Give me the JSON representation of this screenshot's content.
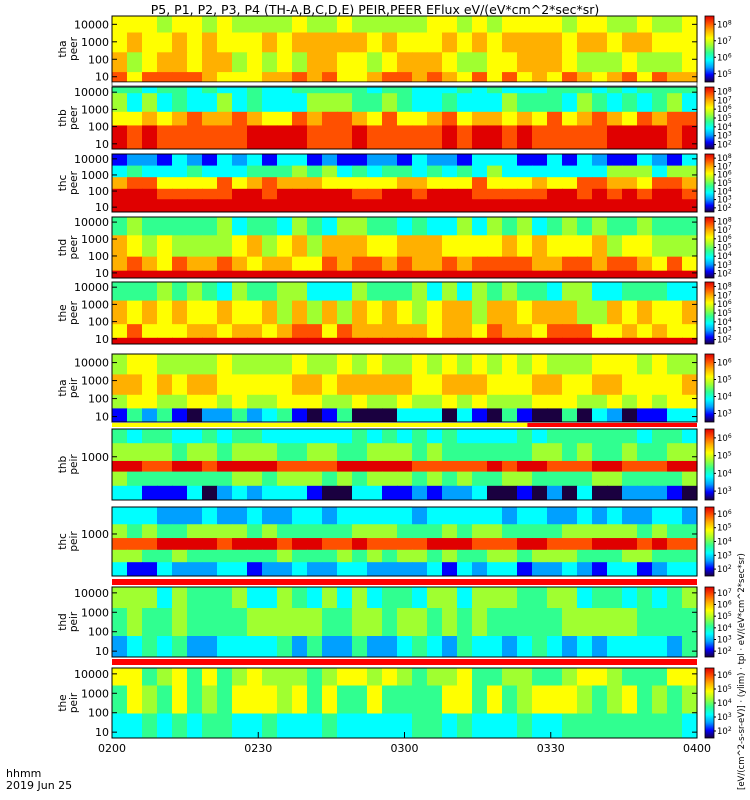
{
  "title": "P5, P1, P2, P3, P4 (TH-A,B,C,D,E) PEIR,PEER EFlux eV/(eV*cm^2*sec*sr)",
  "side_label": "[eV/(cm^2-s-sr-eV)] · (ylim) · tpl · eV/(eV*cm^2*sec*sr)",
  "footer": {
    "label_line1": "hhmm",
    "label_line2": "2019 Jun 25"
  },
  "colors": {
    "mode_bar_red": "#ff0000",
    "mode_bar_yellow": "#ffff00"
  },
  "chart_data": {
    "type": "heatmap",
    "colormap": [
      "#1a0040",
      "#0000ff",
      "#00a0ff",
      "#00ffff",
      "#30ff90",
      "#a0ff30",
      "#ffff00",
      "#ffb000",
      "#ff5000",
      "#e00000"
    ],
    "x_ticks": [
      "0200",
      "0230",
      "0300",
      "0330",
      "0400"
    ],
    "xlim": [
      "02:00",
      "04:00"
    ],
    "panels": [
      {
        "label1": "tha",
        "label2": "peer",
        "yscale": "log",
        "ylim": [
          5,
          30000
        ],
        "yticks": [
          "10",
          "100",
          "1000",
          "10000"
        ],
        "cbar_ticks": [
          "10^5",
          "10^6",
          "10^7",
          "10^8"
        ],
        "mode_bar": "none"
      },
      {
        "label1": "thb",
        "label2": "peer",
        "yscale": "log",
        "ylim": [
          5,
          20000
        ],
        "yticks": [
          "10",
          "100",
          "1000",
          "10000"
        ],
        "cbar_ticks": [
          "10^2",
          "10^3",
          "10^4",
          "10^5",
          "10^6",
          "10^7",
          "10^8"
        ],
        "mode_bar": "white"
      },
      {
        "label1": "thc",
        "label2": "peer",
        "yscale": "log",
        "ylim": [
          5,
          20000
        ],
        "yticks": [
          "10",
          "100",
          "1000",
          "10000"
        ],
        "cbar_ticks": [
          "10^2",
          "10^3",
          "10^4",
          "10^5",
          "10^6",
          "10^7",
          "10^8"
        ],
        "mode_bar": "none"
      },
      {
        "label1": "thd",
        "label2": "peer",
        "yscale": "log",
        "ylim": [
          5,
          20000
        ],
        "yticks": [
          "10",
          "100",
          "1000",
          "10000"
        ],
        "cbar_ticks": [
          "10^2",
          "10^3",
          "10^4",
          "10^5",
          "10^6",
          "10^7",
          "10^8"
        ],
        "mode_bar": "none"
      },
      {
        "label1": "the",
        "label2": "peer",
        "yscale": "log",
        "ylim": [
          5,
          20000
        ],
        "yticks": [
          "10",
          "100",
          "1000",
          "10000"
        ],
        "cbar_ticks": [
          "10^2",
          "10^3",
          "10^4",
          "10^5",
          "10^6",
          "10^7",
          "10^8"
        ],
        "mode_bar": "none"
      },
      {
        "label1": "tha",
        "label2": "peir",
        "yscale": "log",
        "ylim": [
          5,
          30000
        ],
        "yticks": [
          "10",
          "100",
          "1000",
          "10000"
        ],
        "cbar_ticks": [
          "10^3",
          "10^4",
          "10^5",
          "10^6"
        ],
        "mode_bar": "red-yellow"
      },
      {
        "label1": "thb",
        "label2": "peir",
        "yscale": "log",
        "ylim": [
          5,
          30000
        ],
        "yticks": [
          "1000"
        ],
        "cbar_ticks": [
          "10^3",
          "10^4",
          "10^5",
          "10^6"
        ],
        "mode_bar": "none"
      },
      {
        "label1": "thc",
        "label2": "peir",
        "yscale": "log",
        "ylim": [
          5,
          30000
        ],
        "yticks": [
          "1000"
        ],
        "cbar_ticks": [
          "10^2",
          "10^3",
          "10^4",
          "10^5",
          "10^6"
        ],
        "mode_bar": "red"
      },
      {
        "label1": "thd",
        "label2": "peir",
        "yscale": "log",
        "ylim": [
          5,
          20000
        ],
        "yticks": [
          "10",
          "100",
          "1000",
          "10000"
        ],
        "cbar_ticks": [
          "10^2",
          "10^3",
          "10^4",
          "10^5",
          "10^6",
          "10^7"
        ],
        "mode_bar": "red"
      },
      {
        "label1": "the",
        "label2": "peir",
        "yscale": "log",
        "ylim": [
          5,
          20000
        ],
        "yticks": [
          "10",
          "100",
          "1000",
          "10000"
        ],
        "cbar_ticks": [
          "10^2",
          "10^3",
          "10^4",
          "10^5",
          "10^6"
        ],
        "mode_bar": "none"
      }
    ]
  }
}
